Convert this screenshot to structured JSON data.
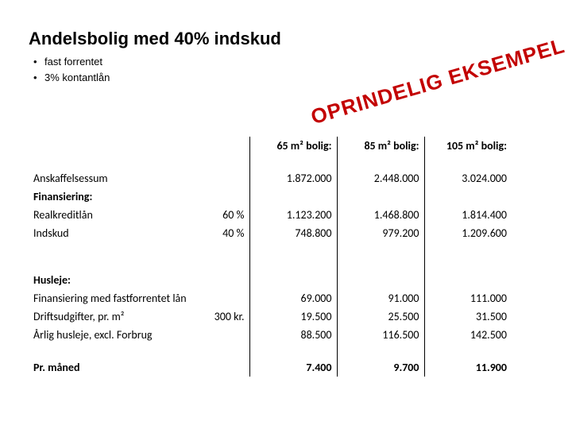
{
  "stamp": {
    "text": "OPRINDELIG EKSEMPEL",
    "color": "#c30000",
    "fontsize": 26
  },
  "title": "Andelsbolig med 40% indskud",
  "bullets": [
    "fast forrentet",
    "3% kontantlån"
  ],
  "table": {
    "label_col_width": 224,
    "pct_col_width": 54,
    "data_col_width": 110,
    "border_color": "#000000",
    "fontsize": 14,
    "columns": [
      {
        "pct": "",
        "h": "65 m² bolig:"
      },
      {
        "pct": "",
        "h": "85 m² bolig:"
      },
      {
        "pct": "",
        "h": "105 m² bolig:"
      }
    ],
    "block1": [
      {
        "label": "Anskaffelsessum",
        "pct": "",
        "v": [
          "1.872.000",
          "2.448.000",
          "3.024.000"
        ],
        "bold": false
      },
      {
        "label": "Finansiering:",
        "pct": "",
        "v": [
          "",
          "",
          ""
        ],
        "bold": true
      },
      {
        "label": "Realkreditlån",
        "pct": "60 %",
        "v": [
          "1.123.200",
          "1.468.800",
          "1.814.400"
        ],
        "bold": false
      },
      {
        "label": "Indskud",
        "pct": "40 %",
        "v": [
          "748.800",
          "979.200",
          "1.209.600"
        ],
        "bold": false
      }
    ],
    "block2": [
      {
        "label": "Husleje:",
        "pct": "",
        "v": [
          "",
          "",
          ""
        ],
        "bold": true
      },
      {
        "label": "Finansiering med fastforrentet lån",
        "pct": "",
        "v": [
          "69.000",
          "91.000",
          "111.000"
        ],
        "bold": false
      },
      {
        "label": "Driftsudgifter, pr. m²",
        "pct": "300  kr.",
        "v": [
          "19.500",
          "25.500",
          "31.500"
        ],
        "bold": false
      },
      {
        "label": "Årlig husleje, excl. Forbrug",
        "pct": "",
        "v": [
          "88.500",
          "116.500",
          "142.500"
        ],
        "bold": false
      }
    ],
    "footer": {
      "label": "Pr. måned",
      "pct": "",
      "v": [
        "7.400",
        "9.700",
        "11.900"
      ],
      "bold": true
    }
  }
}
